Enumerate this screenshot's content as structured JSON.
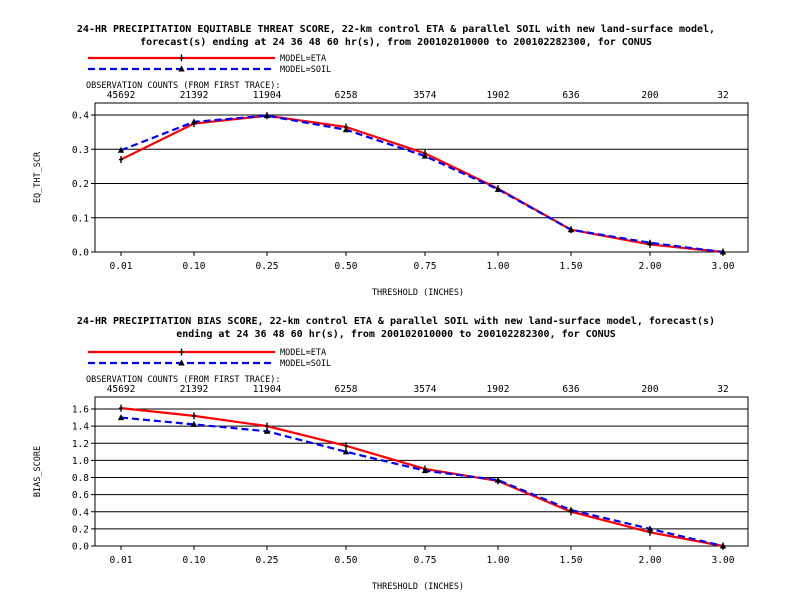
{
  "colors": {
    "eta": "#ff0000",
    "soil": "#0000ff",
    "grid": "#000000"
  },
  "chart_data": [
    {
      "type": "line",
      "title": [
        "24-HR PRECIPITATION EQUITABLE THREAT SCORE, 22-km control ETA & parallel SOIL with new land-surface model,",
        "forecast(s) ending at 24 36 48 60 hr(s), from 200102010000 to 200102282300, for CONUS"
      ],
      "legend": [
        "MODEL=ETA",
        "MODEL=SOIL"
      ],
      "legend_placement": "top-left",
      "counts_label": "OBSERVATION COUNTS (FROM FIRST TRACE):",
      "counts": [
        "45692",
        "21392",
        "11904",
        "6258",
        "3574",
        "1902",
        "636",
        "200",
        "32"
      ],
      "categories": [
        "0.01",
        "0.10",
        "0.25",
        "0.50",
        "0.75",
        "1.00",
        "1.50",
        "2.00",
        "3.00"
      ],
      "xlabel": "THRESHOLD (INCHES)",
      "ylabel": "EQ_THT_SCR",
      "ylim": [
        0,
        0.4
      ],
      "yticks": [
        "0.0",
        "0.1",
        "0.2",
        "0.3",
        "0.4"
      ],
      "grid": true,
      "series": [
        {
          "name": "MODEL=ETA",
          "values": [
            0.27,
            0.375,
            0.398,
            0.365,
            0.288,
            0.185,
            0.065,
            0.022,
            0.0
          ]
        },
        {
          "name": "MODEL=SOIL",
          "values": [
            0.297,
            0.38,
            0.398,
            0.357,
            0.28,
            0.183,
            0.065,
            0.027,
            0.0
          ]
        }
      ]
    },
    {
      "type": "line",
      "title": [
        "24-HR PRECIPITATION BIAS SCORE, 22-km control ETA & parallel SOIL with new land-surface model, forecast(s)",
        "ending at 24 36 48 60 hr(s), from 200102010000 to 200102282300, for CONUS"
      ],
      "legend": [
        "MODEL=ETA",
        "MODEL=SOIL"
      ],
      "legend_placement": "top-left",
      "counts_label": "OBSERVATION COUNTS (FROM FIRST TRACE):",
      "counts": [
        "45692",
        "21392",
        "11904",
        "6258",
        "3574",
        "1902",
        "636",
        "200",
        "32"
      ],
      "categories": [
        "0.01",
        "0.10",
        "0.25",
        "0.50",
        "0.75",
        "1.00",
        "1.50",
        "2.00",
        "3.00"
      ],
      "xlabel": "THRESHOLD (INCHES)",
      "ylabel": "BIAS_SCORE",
      "ylim": [
        0,
        1.6
      ],
      "yticks": [
        "0.0",
        "0.2",
        "0.4",
        "0.6",
        "0.8",
        "1.0",
        "1.2",
        "1.4",
        "1.6"
      ],
      "grid": true,
      "series": [
        {
          "name": "MODEL=ETA",
          "values": [
            1.61,
            1.52,
            1.4,
            1.17,
            0.9,
            0.76,
            0.4,
            0.16,
            0.0
          ]
        },
        {
          "name": "MODEL=SOIL",
          "values": [
            1.5,
            1.42,
            1.34,
            1.1,
            0.88,
            0.77,
            0.42,
            0.2,
            0.0
          ]
        }
      ]
    }
  ]
}
